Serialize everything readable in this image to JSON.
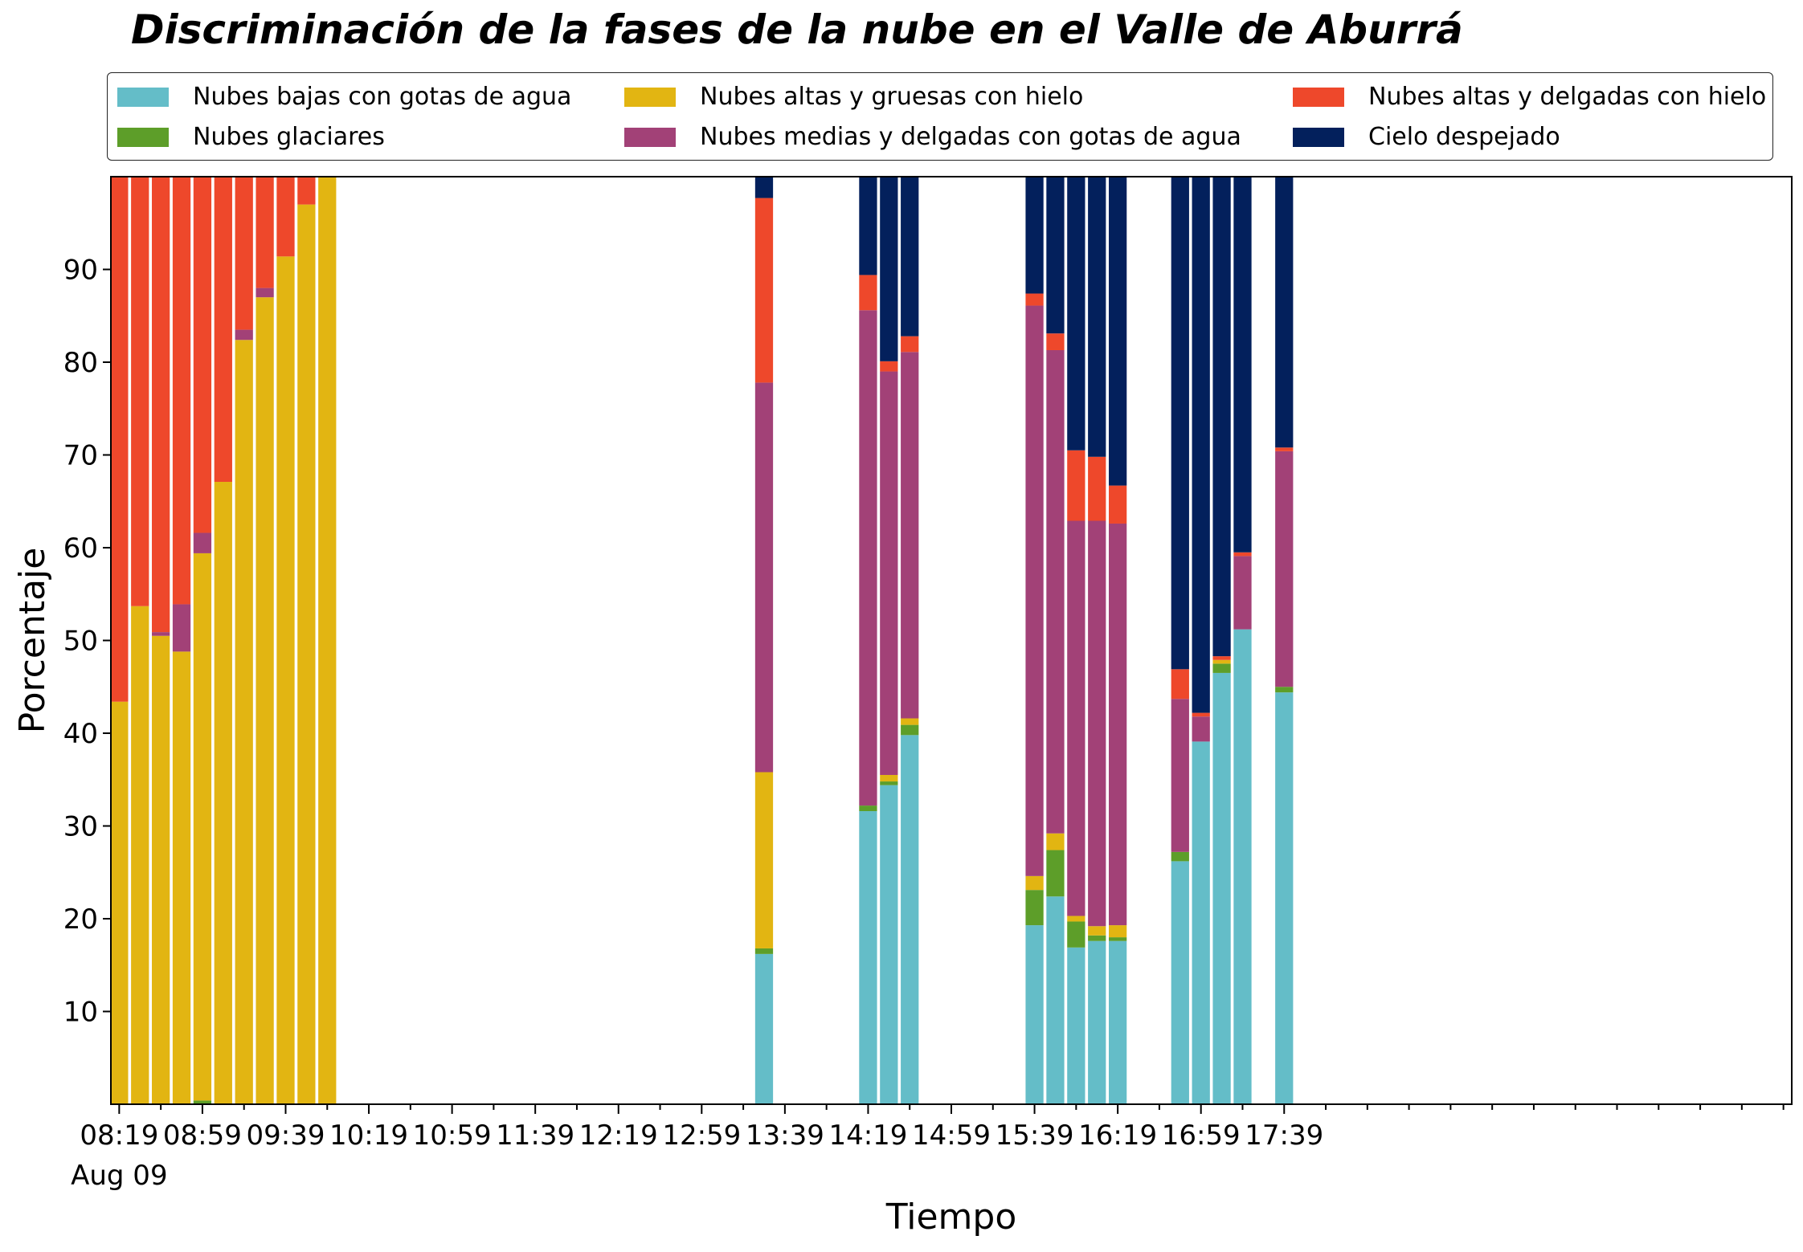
{
  "chart_data": {
    "type": "bar",
    "stacked": true,
    "title": "Discriminación de la fases de la nube en el Valle de Aburrá",
    "xlabel": "Tiempo",
    "ylabel": "Porcentaje",
    "ylim": [
      0,
      100
    ],
    "xlim_minutes_since_0819": [
      -4,
      804
    ],
    "yticks": [
      10,
      20,
      30,
      40,
      50,
      60,
      70,
      80,
      90
    ],
    "xticks": [
      {
        "label": "08:19",
        "sub": "Aug 09",
        "t": 0
      },
      {
        "label": "08:59",
        "t": 40
      },
      {
        "label": "09:39",
        "t": 80
      },
      {
        "label": "10:19",
        "t": 120
      },
      {
        "label": "10:59",
        "t": 160
      },
      {
        "label": "11:39",
        "t": 200
      },
      {
        "label": "12:19",
        "t": 240
      },
      {
        "label": "12:59",
        "t": 280
      },
      {
        "label": "13:39",
        "t": 320
      },
      {
        "label": "14:19",
        "t": 360
      },
      {
        "label": "14:59",
        "t": 400
      },
      {
        "label": "15:39",
        "t": 440
      },
      {
        "label": "16:19",
        "t": 480
      },
      {
        "label": "16:59",
        "t": 520
      },
      {
        "label": "17:39",
        "t": 560
      }
    ],
    "minor_tick_step_minutes": 20,
    "grid": false,
    "legend_position": "top, above plot, 3 columns",
    "series_order": [
      "bajas",
      "glaciares",
      "altas_gruesas",
      "medias",
      "altas_delgadas",
      "despejado"
    ],
    "series": [
      {
        "key": "bajas",
        "name": "Nubes bajas con gotas de agua",
        "color": "#64bdc8"
      },
      {
        "key": "glaciares",
        "name": "Nubes glaciares",
        "color": "#5d9e29"
      },
      {
        "key": "altas_gruesas",
        "name": "Nubes altas y gruesas con hielo",
        "color": "#e2b512"
      },
      {
        "key": "medias",
        "name": "Nubes medias y delgadas con gotas de agua",
        "color": "#a24177"
      },
      {
        "key": "altas_delgadas",
        "name": "Nubes altas y delgadas con hielo",
        "color": "#ee482b"
      },
      {
        "key": "despejado",
        "name": "Cielo despejado",
        "color": "#03205c"
      }
    ],
    "bars": [
      {
        "time": "08:19",
        "values": [
          0,
          0,
          43.4,
          0,
          56.6,
          0
        ]
      },
      {
        "time": "08:29",
        "values": [
          0,
          0,
          53.7,
          0,
          46.3,
          0
        ]
      },
      {
        "time": "08:39",
        "values": [
          0,
          0,
          50.5,
          0.4,
          49.1,
          0
        ]
      },
      {
        "time": "08:49",
        "values": [
          0,
          0,
          48.8,
          5.1,
          46.1,
          0
        ]
      },
      {
        "time": "08:59",
        "values": [
          0,
          0.4,
          59.0,
          2.2,
          38.4,
          0
        ]
      },
      {
        "time": "09:09",
        "values": [
          0,
          0,
          67.1,
          0,
          32.9,
          0
        ]
      },
      {
        "time": "09:19",
        "values": [
          0,
          0,
          82.4,
          1.1,
          16.5,
          0
        ]
      },
      {
        "time": "09:29",
        "values": [
          0,
          0,
          87.0,
          1.0,
          12.0,
          0
        ]
      },
      {
        "time": "09:39",
        "values": [
          0,
          0,
          91.4,
          0,
          8.6,
          0
        ]
      },
      {
        "time": "09:49",
        "values": [
          0,
          0,
          97.0,
          0,
          3.0,
          0
        ]
      },
      {
        "time": "09:59",
        "values": [
          0,
          0,
          100,
          0,
          0,
          0
        ]
      },
      {
        "time": "13:29",
        "values": [
          16.2,
          0.6,
          19.0,
          42.0,
          19.9,
          2.3
        ]
      },
      {
        "time": "14:19",
        "values": [
          31.6,
          0.6,
          0,
          53.4,
          3.8,
          10.6
        ]
      },
      {
        "time": "14:29",
        "values": [
          34.4,
          0.4,
          0.7,
          43.5,
          1.1,
          19.9
        ]
      },
      {
        "time": "14:39",
        "values": [
          39.8,
          1.1,
          0.7,
          39.5,
          1.7,
          17.2
        ]
      },
      {
        "time": "15:39",
        "values": [
          19.3,
          3.8,
          1.5,
          61.5,
          1.3,
          12.6
        ]
      },
      {
        "time": "15:49",
        "values": [
          22.4,
          5.0,
          1.8,
          52.1,
          1.8,
          16.9
        ]
      },
      {
        "time": "15:59",
        "values": [
          16.9,
          2.8,
          0.6,
          42.6,
          7.6,
          29.5
        ]
      },
      {
        "time": "16:09",
        "values": [
          17.6,
          0.6,
          1.0,
          43.7,
          6.9,
          30.2
        ]
      },
      {
        "time": "16:19",
        "values": [
          17.6,
          0.4,
          1.3,
          43.3,
          4.1,
          33.3
        ]
      },
      {
        "time": "16:49",
        "values": [
          26.2,
          1.0,
          0,
          16.5,
          3.2,
          53.1
        ]
      },
      {
        "time": "16:59",
        "values": [
          39.1,
          0,
          0,
          2.7,
          0.4,
          57.8
        ]
      },
      {
        "time": "17:09",
        "values": [
          46.5,
          1.0,
          0.4,
          0,
          0.4,
          51.7
        ]
      },
      {
        "time": "17:19",
        "values": [
          51.2,
          0,
          0,
          7.9,
          0.4,
          40.5
        ]
      },
      {
        "time": "17:39",
        "values": [
          44.4,
          0.6,
          0,
          25.4,
          0.4,
          29.2
        ]
      }
    ]
  }
}
